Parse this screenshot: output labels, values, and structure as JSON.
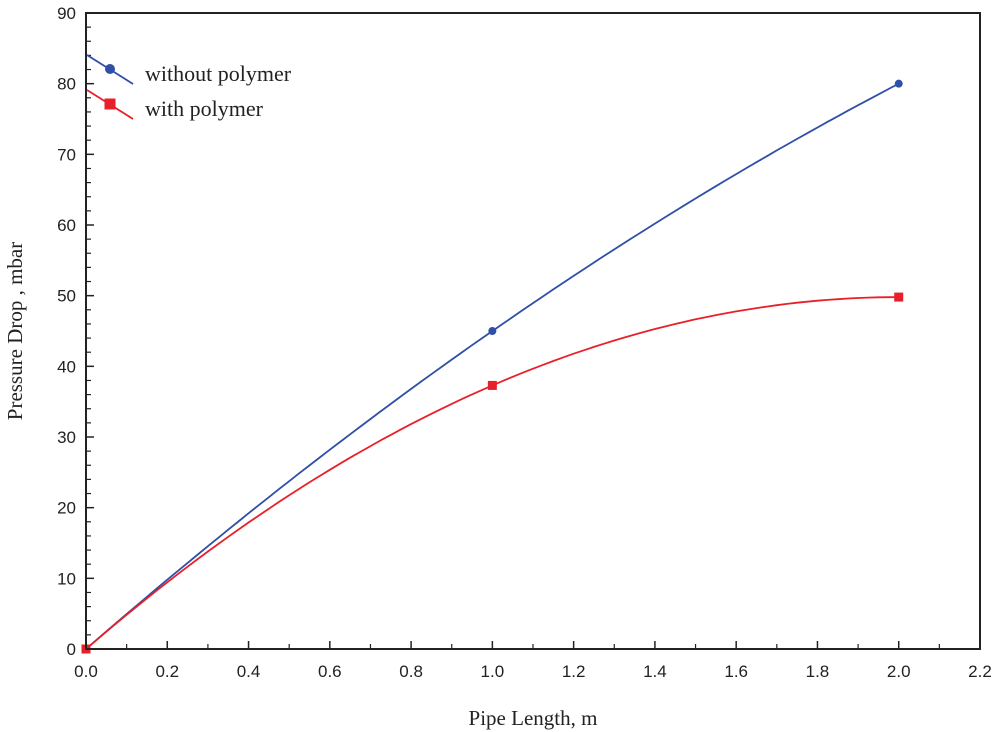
{
  "chart_data": {
    "type": "line",
    "title": "",
    "xlabel": "Pipe Length, m",
    "ylabel": "Pressure Drop , mbar",
    "xlim": [
      0,
      2.2
    ],
    "ylim": [
      0,
      90
    ],
    "xticks": [
      "0.0",
      "0.2",
      "0.4",
      "0.6",
      "0.8",
      "1.0",
      "1.2",
      "1.4",
      "1.6",
      "1.8",
      "2.0",
      "2.2"
    ],
    "yticks": [
      "0",
      "10",
      "20",
      "30",
      "40",
      "50",
      "60",
      "70",
      "80",
      "90"
    ],
    "grid": false,
    "legend_position": "top-left",
    "series": [
      {
        "name": "without polymer",
        "color": "#2f4fa8",
        "marker": "circle",
        "x": [
          0,
          1.0,
          2.0
        ],
        "y": [
          0,
          45,
          80
        ]
      },
      {
        "name": "with polymer",
        "color": "#e8202a",
        "marker": "square",
        "x": [
          0,
          1.0,
          2.0
        ],
        "y": [
          0,
          37.3,
          49.8
        ]
      }
    ]
  }
}
